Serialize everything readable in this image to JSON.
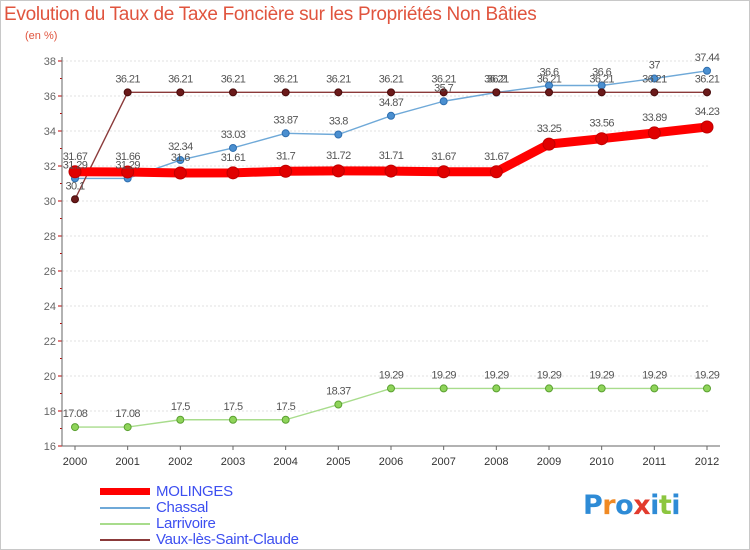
{
  "title": "Evolution du Taux de Taxe Foncière sur les Propriétés Non Bâties",
  "subtitle": "(en %)",
  "brand": {
    "text": "Proxiti",
    "letter_colors": [
      "#2e8bd6",
      "#f08a24",
      "#2e8bd6",
      "#e23b2e",
      "#2e8bd6",
      "#8cc63f",
      "#2e8bd6"
    ]
  },
  "colors": {
    "title": "#e0543e",
    "legend_text": "#3d4ff0",
    "axis": "#666666",
    "grid": "#e0e0e0",
    "label": "#666666"
  },
  "chart_data": {
    "type": "line",
    "title": "Evolution du Taux de Taxe Foncière sur les Propriétés Non Bâties",
    "ylabel": "(en %)",
    "xlabel": "",
    "categories": [
      "2000",
      "2001",
      "2002",
      "2003",
      "2004",
      "2005",
      "2006",
      "2007",
      "2008",
      "2009",
      "2010",
      "2011",
      "2012"
    ],
    "ylim": [
      16,
      38
    ],
    "yticks": [
      "16",
      "18",
      "20",
      "22",
      "24",
      "26",
      "28",
      "30",
      "32",
      "34",
      "36",
      "38"
    ],
    "series": [
      {
        "name": "MOLINGES",
        "color": "#ff0000",
        "values": [
          31.67,
          31.66,
          31.6,
          31.61,
          31.7,
          31.72,
          31.71,
          31.67,
          31.67,
          33.25,
          33.56,
          33.89,
          34.23
        ],
        "labels": [
          "31.67",
          "31.66",
          "31.6",
          "31.61",
          "31.7",
          "31.72",
          "31.71",
          "31.67",
          "31.67",
          "33.25",
          "33.56",
          "33.89",
          "34.23"
        ]
      },
      {
        "name": "Chassal",
        "color": "#6fa9d8",
        "values": [
          31.29,
          31.29,
          32.34,
          33.03,
          33.87,
          33.8,
          34.87,
          35.7,
          36.2,
          36.6,
          36.6,
          37,
          37.44
        ],
        "labels": [
          "31.29",
          "31.29",
          "32.34",
          "33.03",
          "33.87",
          "33.8",
          "34.87",
          "35.7",
          "36.2",
          "36.6",
          "36.6",
          "37",
          "37.44"
        ]
      },
      {
        "name": "Larrivoire",
        "color": "#a8dc8c",
        "values": [
          17.08,
          17.08,
          17.5,
          17.5,
          17.5,
          18.37,
          19.29,
          19.29,
          19.29,
          19.29,
          19.29,
          19.29,
          19.29
        ],
        "labels": [
          "17.08",
          "17.08",
          "17.5",
          "17.5",
          "17.5",
          "18.37",
          "19.29",
          "19.29",
          "19.29",
          "19.29",
          "19.29",
          "19.29",
          "19.29"
        ]
      },
      {
        "name": "Vaux-lès-Saint-Claude",
        "color": "#8b3a3a",
        "values": [
          30.1,
          36.21,
          36.21,
          36.21,
          36.21,
          36.21,
          36.21,
          36.21,
          36.21,
          36.21,
          36.21,
          36.21,
          36.21
        ],
        "labels": [
          "30.1",
          "36.21",
          "36.21",
          "36.21",
          "36.21",
          "36.21",
          "36.21",
          "36.21",
          "36.21",
          "36.21",
          "36.21",
          "36.21",
          "36.21"
        ]
      }
    ],
    "grid": true,
    "legend_position": "bottom-left"
  }
}
